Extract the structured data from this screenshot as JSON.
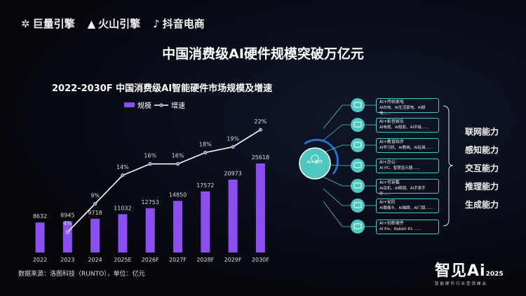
{
  "header": {
    "logos": [
      "巨量引擎",
      "火山引擎",
      "抖音电商"
    ],
    "title": "中国消费级AI硬件规模突破万亿元"
  },
  "chart_data": {
    "type": "bar+line",
    "title": "2022-2030F 中国消费级AI智能硬件市场规模及增速",
    "categories": [
      "2022",
      "2023",
      "2024",
      "2025E",
      "2026F",
      "2027F",
      "2028F",
      "2029F",
      "2030F"
    ],
    "series": [
      {
        "name": "规模",
        "type": "bar",
        "values": [
          8632,
          8945,
          9718,
          11032,
          12753,
          14850,
          17572,
          20973,
          25618
        ],
        "color": "#8b4ff0"
      },
      {
        "name": "增速",
        "type": "line",
        "values": [
          null,
          4,
          9,
          14,
          16,
          16,
          18,
          19,
          22
        ],
        "unit": "%",
        "color": "#ffffff"
      }
    ],
    "source": "数据来源：洛图科技（RUNTO），单位：亿元",
    "legend": "top"
  },
  "diagram": {
    "center": "AI+硬件",
    "accent": "#4fc6c0",
    "items": [
      {
        "icon": "appliance-icon",
        "title": "AI+传统家电",
        "desc": "AI白电、AI生活家电、AI厨电......"
      },
      {
        "icon": "video-play-icon",
        "title": "AI+影音娱乐",
        "desc": "AI电视、AI投影、AI平板......"
      },
      {
        "icon": "person-icon",
        "title": "AI+教育陪伴",
        "desc": "AI学习机、AI教具、AI玩具......"
      },
      {
        "icon": "monitor-icon",
        "title": "AI+办公",
        "desc": "AI PC、智慧显示器......"
      },
      {
        "icon": "headphones-icon",
        "title": "AI+可穿戴",
        "desc": "AI耳机、AI眼镜、AI手表手环......"
      },
      {
        "icon": "camera-icon",
        "title": "AI+安防",
        "desc": "AI摄像头、AI猫眼、AI门锁......"
      },
      {
        "icon": "lightbulb-icon",
        "title": "AI+创新硬件",
        "desc": "AI Pin、Rabbit R1 ......"
      }
    ],
    "capabilities": [
      "联网能力",
      "感知能力",
      "交互能力",
      "推理能力",
      "生成能力"
    ]
  },
  "brand": {
    "name": "智见Ai",
    "year": "2025",
    "sub": "智能硬件行业营销峰会"
  }
}
